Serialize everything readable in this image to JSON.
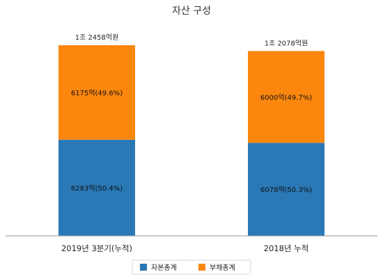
{
  "chart_data": {
    "type": "bar",
    "stacked": true,
    "title": "자산 구성",
    "categories": [
      "2019년 3분기(누적)",
      "2018년 누적"
    ],
    "unit": "억원",
    "series": [
      {
        "name": "자본총계",
        "color": "#2a78b6",
        "values": [
          6283,
          6078
        ],
        "labels": [
          "6283억(50.4%)",
          "6078억(50.3%)"
        ]
      },
      {
        "name": "부채총계",
        "color": "#fb870e",
        "values": [
          6175,
          6000
        ],
        "labels": [
          "6175억(49.6%)",
          "6000억(49.7%)"
        ]
      }
    ],
    "totals": [
      12458,
      12078
    ],
    "total_labels": [
      "1조 2458억원",
      "1조 2078억원"
    ],
    "legend_position": "bottom",
    "grid": false
  }
}
